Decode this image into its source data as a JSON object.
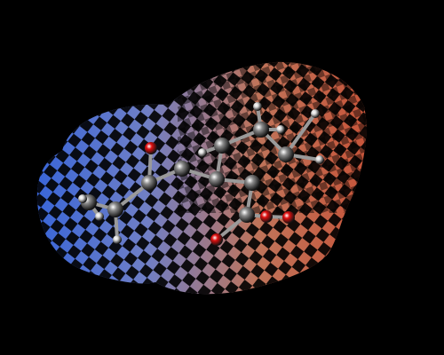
{
  "viewer": {
    "background": "#000000",
    "surface": {
      "style": "checkered-mesh",
      "gradient": [
        "#3a66d8",
        "#6f7fc6",
        "#c0745a",
        "#c7553a"
      ],
      "gradient_direction": "left-to-right",
      "dark_cell_color": "#000000"
    },
    "molecule": {
      "representation": "ball-and-stick",
      "carbon_color": "#8a8a8a",
      "hydrogen_color": "#dcdcdc",
      "oxygen_color": "#e01010"
    }
  }
}
